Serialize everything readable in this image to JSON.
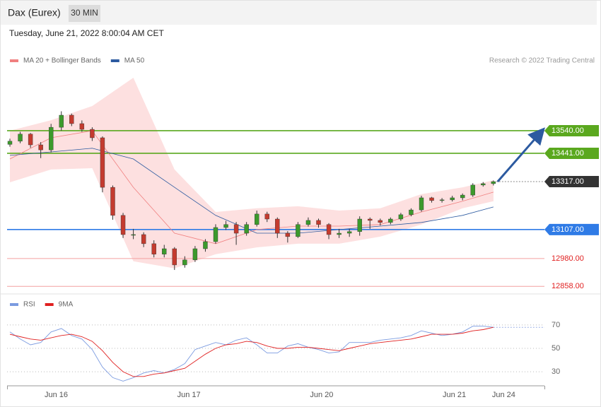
{
  "header": {
    "title": "Dax (Eurex)",
    "timeframe": "30 MIN",
    "timestamp": "Tuesday, June 21, 2022 8:00:04 AM CET"
  },
  "chart_data": [
    {
      "type": "candlestick",
      "source": "Research © 2022 Trading Central",
      "up_color": "#3c9a2c",
      "down_color": "#c43b2f",
      "xlim": [
        0,
        52
      ],
      "ylim": [
        12828,
        13803
      ],
      "ohlc": [
        [
          13480,
          13505,
          13470,
          13494
        ],
        [
          13494,
          13535,
          13485,
          13525
        ],
        [
          13525,
          13530,
          13465,
          13478
        ],
        [
          13478,
          13490,
          13420,
          13456
        ],
        [
          13456,
          13570,
          13445,
          13555
        ],
        [
          13555,
          13625,
          13540,
          13608
        ],
        [
          13608,
          13615,
          13560,
          13571
        ],
        [
          13571,
          13585,
          13535,
          13546
        ],
        [
          13546,
          13555,
          13495,
          13509
        ],
        [
          13509,
          13515,
          13270,
          13292
        ],
        [
          13292,
          13300,
          13150,
          13169
        ],
        [
          13169,
          13180,
          13070,
          13085
        ],
        [
          13085,
          13110,
          13065,
          13085
        ],
        [
          13085,
          13095,
          13030,
          13045
        ],
        [
          13045,
          13060,
          12985,
          12999
        ],
        [
          12999,
          13040,
          12985,
          13023
        ],
        [
          13023,
          13030,
          12930,
          12952
        ],
        [
          12952,
          12990,
          12940,
          12974
        ],
        [
          12974,
          13035,
          12965,
          13023
        ],
        [
          13023,
          13065,
          13010,
          13054
        ],
        [
          13054,
          13130,
          13045,
          13116
        ],
        [
          13116,
          13145,
          13105,
          13129
        ],
        [
          13129,
          13140,
          13040,
          13091
        ],
        [
          13091,
          13140,
          13080,
          13129
        ],
        [
          13129,
          13190,
          13120,
          13175
        ],
        [
          13175,
          13185,
          13140,
          13153
        ],
        [
          13153,
          13160,
          13070,
          13091
        ],
        [
          13091,
          13100,
          13050,
          13076
        ],
        [
          13076,
          13140,
          13070,
          13129
        ],
        [
          13129,
          13160,
          13120,
          13147
        ],
        [
          13147,
          13155,
          13115,
          13129
        ],
        [
          13129,
          13135,
          13065,
          13085
        ],
        [
          13085,
          13110,
          13070,
          13091
        ],
        [
          13091,
          13110,
          13075,
          13098
        ],
        [
          13098,
          13165,
          13080,
          13153
        ],
        [
          13153,
          13160,
          13110,
          13147
        ],
        [
          13147,
          13155,
          13125,
          13138
        ],
        [
          13138,
          13160,
          13130,
          13153
        ],
        [
          13153,
          13180,
          13145,
          13172
        ],
        [
          13172,
          13200,
          13165,
          13193
        ],
        [
          13193,
          13255,
          13185,
          13246
        ],
        [
          13246,
          13250,
          13225,
          13234
        ],
        [
          13234,
          13245,
          13225,
          13237
        ],
        [
          13237,
          13255,
          13230,
          13246
        ],
        [
          13246,
          13265,
          13235,
          13258
        ],
        [
          13258,
          13310,
          13250,
          13302
        ],
        [
          13302,
          13315,
          13295,
          13308
        ],
        [
          13308,
          13322,
          13300,
          13317
        ]
      ],
      "x": [
        0,
        4,
        8,
        12,
        16,
        20,
        24,
        28,
        32,
        36,
        40,
        44,
        47
      ],
      "series": [
        {
          "name": "MA 20 + Bollinger Bands",
          "color": "#f08080",
          "band_color": "#fde0e0",
          "values": [
            13416,
            13509,
            13540,
            13292,
            13091,
            13045,
            13107,
            13122,
            13122,
            13129,
            13184,
            13231,
            13271
          ],
          "upper": [
            13540,
            13586,
            13648,
            13772,
            13370,
            13184,
            13200,
            13209,
            13190,
            13200,
            13262,
            13292,
            13323
          ],
          "lower": [
            13314,
            13370,
            13376,
            12968,
            12937,
            12999,
            13029,
            13045,
            13045,
            13076,
            13129,
            13200,
            13231
          ]
        },
        {
          "name": "MA 50",
          "color": "#2c5aa0",
          "values": [
            13432,
            13447,
            13463,
            13416,
            13292,
            13169,
            13091,
            13091,
            13107,
            13122,
            13138,
            13169,
            13206
          ]
        }
      ],
      "levels": [
        {
          "value": 13540,
          "label": "13540.00",
          "color": "#5aa81e",
          "line": "solid",
          "badge": true
        },
        {
          "value": 13441,
          "label": "13441.00",
          "color": "#5aa81e",
          "line": "solid",
          "badge": true
        },
        {
          "value": 13317,
          "label": "13317.00",
          "color": "#333333",
          "line": "dotted",
          "badge": true
        },
        {
          "value": 13107,
          "label": "13107.00",
          "color": "#2f7be6",
          "line": "solid",
          "badge": true
        },
        {
          "value": 12980,
          "label": "12980.00",
          "color": "#f4a0a0",
          "line": "solid",
          "badge": false
        },
        {
          "value": 12858,
          "label": "12858.00",
          "color": "#f4a0a0",
          "line": "solid",
          "badge": false
        }
      ],
      "arrow_color": "#2c5aa0"
    },
    {
      "type": "line",
      "xlim": [
        0,
        52
      ],
      "ylim": [
        18,
        79
      ],
      "yticks": [
        70,
        50,
        30
      ],
      "grid": true,
      "xticks": [
        {
          "value": 4.5,
          "label": "Jun 16"
        },
        {
          "value": 17.4,
          "label": "Jun 17"
        },
        {
          "value": 30.3,
          "label": "Jun 20"
        },
        {
          "value": 43.2,
          "label": "Jun 21"
        },
        {
          "value": 48,
          "label": "Jun 24"
        }
      ],
      "series": [
        {
          "name": "RSI",
          "color": "#7b9be0",
          "values": [
            64,
            58,
            53,
            55,
            64,
            67,
            61,
            58,
            49,
            34,
            25,
            22,
            25,
            29,
            31,
            29,
            32,
            37,
            49,
            52,
            55,
            53,
            57,
            59,
            53,
            46,
            46,
            52,
            54,
            51,
            49,
            46,
            47,
            55,
            55,
            55,
            57,
            58,
            59,
            61,
            65,
            63,
            61,
            62,
            64,
            69,
            69,
            68
          ]
        },
        {
          "name": "9MA",
          "color": "#e02020",
          "values": [
            62,
            60,
            58,
            57,
            59,
            61,
            62,
            60,
            56,
            48,
            38,
            30,
            26,
            26,
            28,
            29,
            31,
            33,
            39,
            45,
            50,
            53,
            54,
            56,
            55,
            52,
            50,
            50,
            51,
            51,
            50,
            49,
            48,
            50,
            52,
            54,
            55,
            56,
            57,
            58,
            60,
            62,
            62,
            62,
            63,
            65,
            66,
            68
          ]
        }
      ]
    }
  ]
}
